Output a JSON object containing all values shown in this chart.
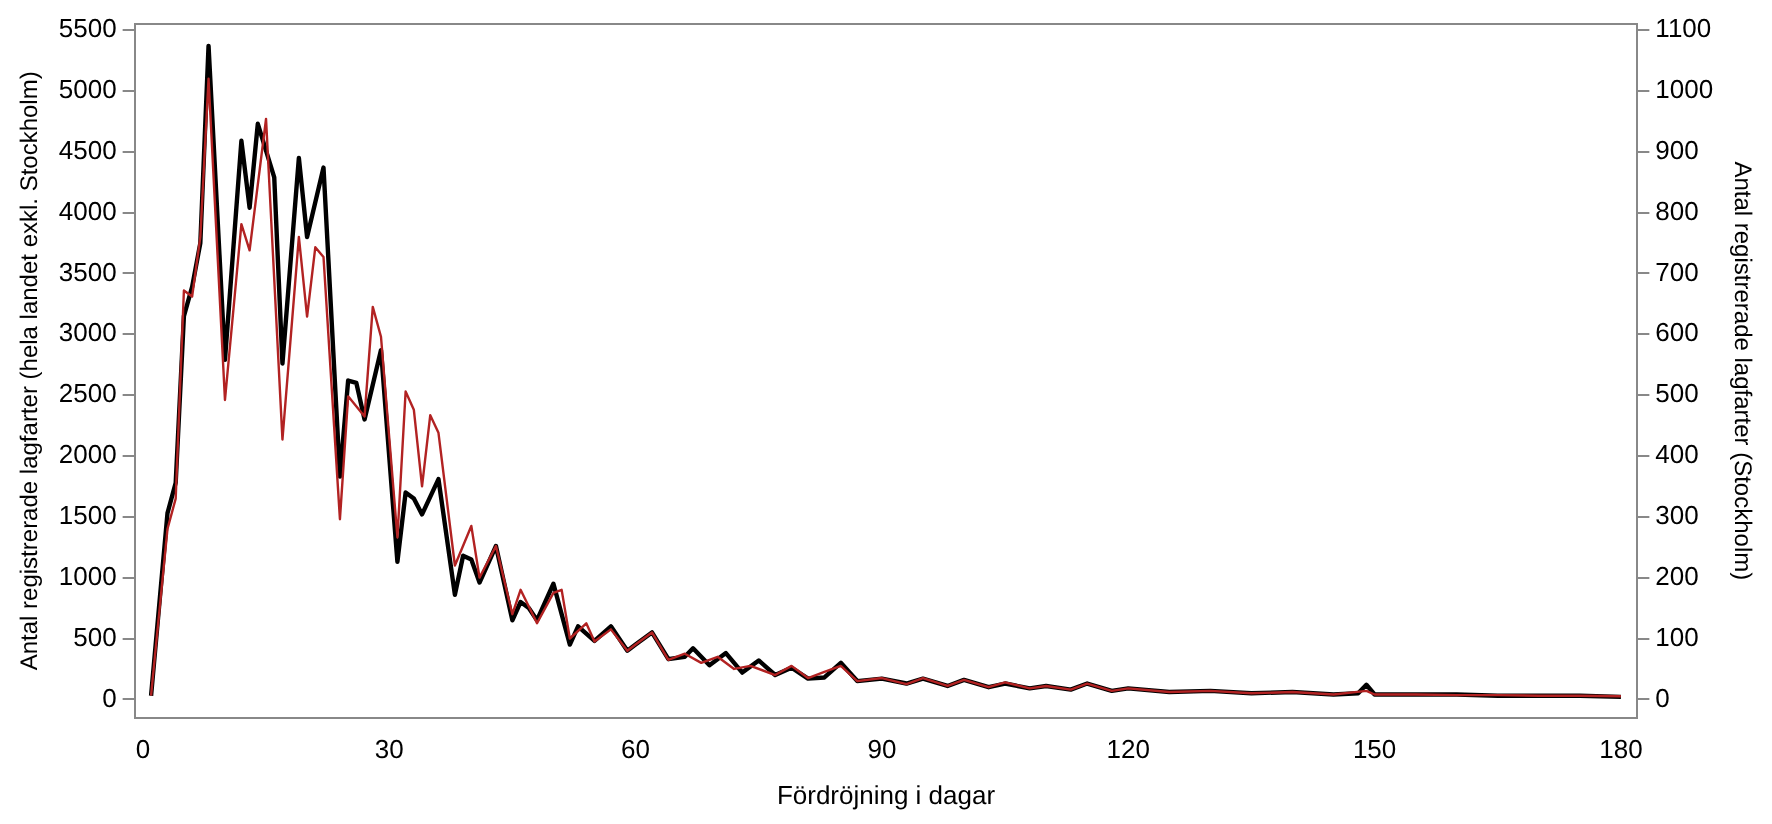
{
  "chart_data": {
    "type": "line",
    "xlabel": "Fördröjning i dagar",
    "ylabel": "Antal registrerade lagfarter (hela landet exkl. Stockholm)",
    "y2label": "Antal registrerade lagfarter (Stockholm)",
    "xlim": [
      -1,
      182
    ],
    "xticks": [
      0,
      30,
      60,
      90,
      120,
      150,
      180
    ],
    "ylim": [
      -150,
      5550
    ],
    "yticks": [
      0,
      500,
      1000,
      1500,
      2000,
      2500,
      3000,
      3500,
      4000,
      4500,
      5000,
      5500
    ],
    "y2lim": [
      -30,
      1110
    ],
    "y2ticks": [
      0,
      100,
      200,
      300,
      400,
      500,
      600,
      700,
      800,
      900,
      1000,
      1100
    ],
    "grid": false,
    "legend": false,
    "marker": "none",
    "line_style": "solid",
    "series": [
      {
        "color": "#000000",
        "x": [
          1,
          3,
          4,
          5,
          6,
          7,
          8,
          10,
          12,
          13,
          14,
          16,
          17,
          19,
          20,
          22,
          24,
          25,
          26,
          27,
          29,
          31,
          32,
          33,
          34,
          36,
          38,
          39,
          40,
          41,
          43,
          45,
          46,
          47,
          48,
          50,
          52,
          53,
          55,
          57,
          59,
          60,
          62,
          64,
          66,
          67,
          69,
          71,
          73,
          75,
          77,
          79,
          81,
          83,
          85,
          87,
          90,
          93,
          95,
          98,
          100,
          103,
          105,
          108,
          110,
          113,
          115,
          118,
          120,
          125,
          130,
          135,
          140,
          145,
          148,
          149,
          150,
          155,
          160,
          165,
          170,
          175,
          180
        ],
        "values": [
          30,
          1530,
          1780,
          3150,
          3390,
          3750,
          5370,
          2790,
          4590,
          4040,
          4730,
          4290,
          2760,
          4450,
          3800,
          4370,
          1830,
          2620,
          2600,
          2300,
          2870,
          1130,
          1700,
          1650,
          1520,
          1810,
          860,
          1180,
          1150,
          960,
          1260,
          650,
          800,
          750,
          650,
          950,
          450,
          600,
          480,
          600,
          400,
          450,
          550,
          330,
          350,
          420,
          280,
          380,
          220,
          320,
          200,
          260,
          170,
          180,
          300,
          150,
          170,
          130,
          170,
          110,
          160,
          100,
          130,
          90,
          110,
          80,
          130,
          70,
          90,
          60,
          70,
          50,
          60,
          40,
          50,
          120,
          40,
          40,
          40,
          30,
          30,
          30,
          20
        ]
      },
      {
        "color": "#b22222",
        "axis": "y2",
        "x": [
          1,
          3,
          4,
          5,
          6,
          7,
          8,
          10,
          12,
          13,
          15,
          17,
          19,
          20,
          21,
          22,
          24,
          25,
          27,
          28,
          29,
          31,
          32,
          33,
          34,
          35,
          36,
          38,
          40,
          41,
          43,
          45,
          46,
          48,
          50,
          51,
          52,
          54,
          55,
          57,
          59,
          60,
          62,
          64,
          66,
          68,
          70,
          72,
          74,
          77,
          79,
          81,
          83,
          85,
          87,
          90,
          93,
          95,
          98,
          100,
          103,
          105,
          108,
          110,
          113,
          115,
          118,
          120,
          125,
          130,
          135,
          140,
          145,
          149,
          150,
          155,
          160,
          165,
          170,
          175,
          180
        ],
        "values": [
          6,
          280,
          330,
          672,
          662,
          760,
          1020,
          492,
          781,
          738,
          954,
          427,
          760,
          629,
          743,
          727,
          296,
          498,
          465,
          645,
          596,
          266,
          506,
          476,
          350,
          467,
          438,
          220,
          285,
          200,
          252,
          140,
          180,
          125,
          175,
          180,
          100,
          125,
          95,
          115,
          80,
          90,
          110,
          65,
          75,
          60,
          70,
          50,
          55,
          40,
          55,
          35,
          45,
          55,
          30,
          35,
          25,
          35,
          22,
          32,
          20,
          28,
          18,
          22,
          16,
          26,
          14,
          18,
          12,
          14,
          10,
          12,
          8,
          14,
          8,
          8,
          7,
          7,
          6,
          6,
          5
        ]
      }
    ]
  }
}
